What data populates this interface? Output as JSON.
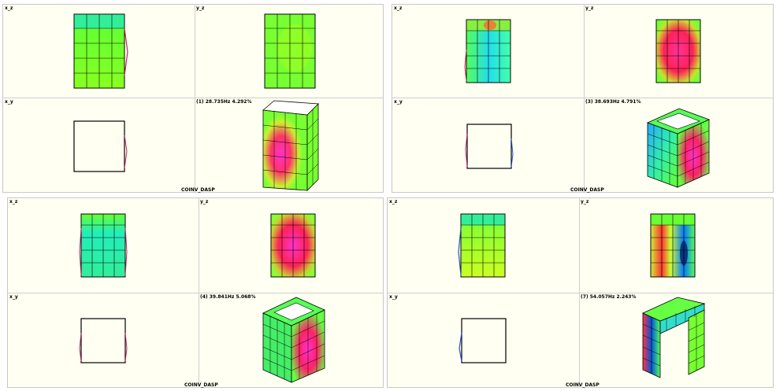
{
  "panels": [
    {
      "view_labels": {
        "xz": "x_z",
        "yz": "y_z",
        "xy": "x_y"
      },
      "mode_label": "(1) 28.735Hz 4.292%",
      "footer": "COINV_DASP"
    },
    {
      "view_labels": {
        "xz": "x_z",
        "yz": "y_z",
        "xy": "x_y"
      },
      "mode_label": "(3) 38.693Hz 4.791%",
      "footer": "COINV_DASP"
    },
    {
      "view_labels": {
        "xz": "x_z",
        "yz": "y_z",
        "xy": "x_y"
      },
      "mode_label": "(4) 39.841Hz 5.068%",
      "footer": "COINV_DASP"
    },
    {
      "view_labels": {
        "xz": "x_z",
        "yz": "y_z",
        "xy": "x_y"
      },
      "mode_label": "(7) 54.057Hz 2.243%",
      "footer": "COINV_DASP"
    }
  ],
  "colors": {
    "background": "#fffff2",
    "grid_line": "#000000",
    "low": "#00ccff",
    "mid": "#66ff33",
    "high": "#ff3399"
  }
}
